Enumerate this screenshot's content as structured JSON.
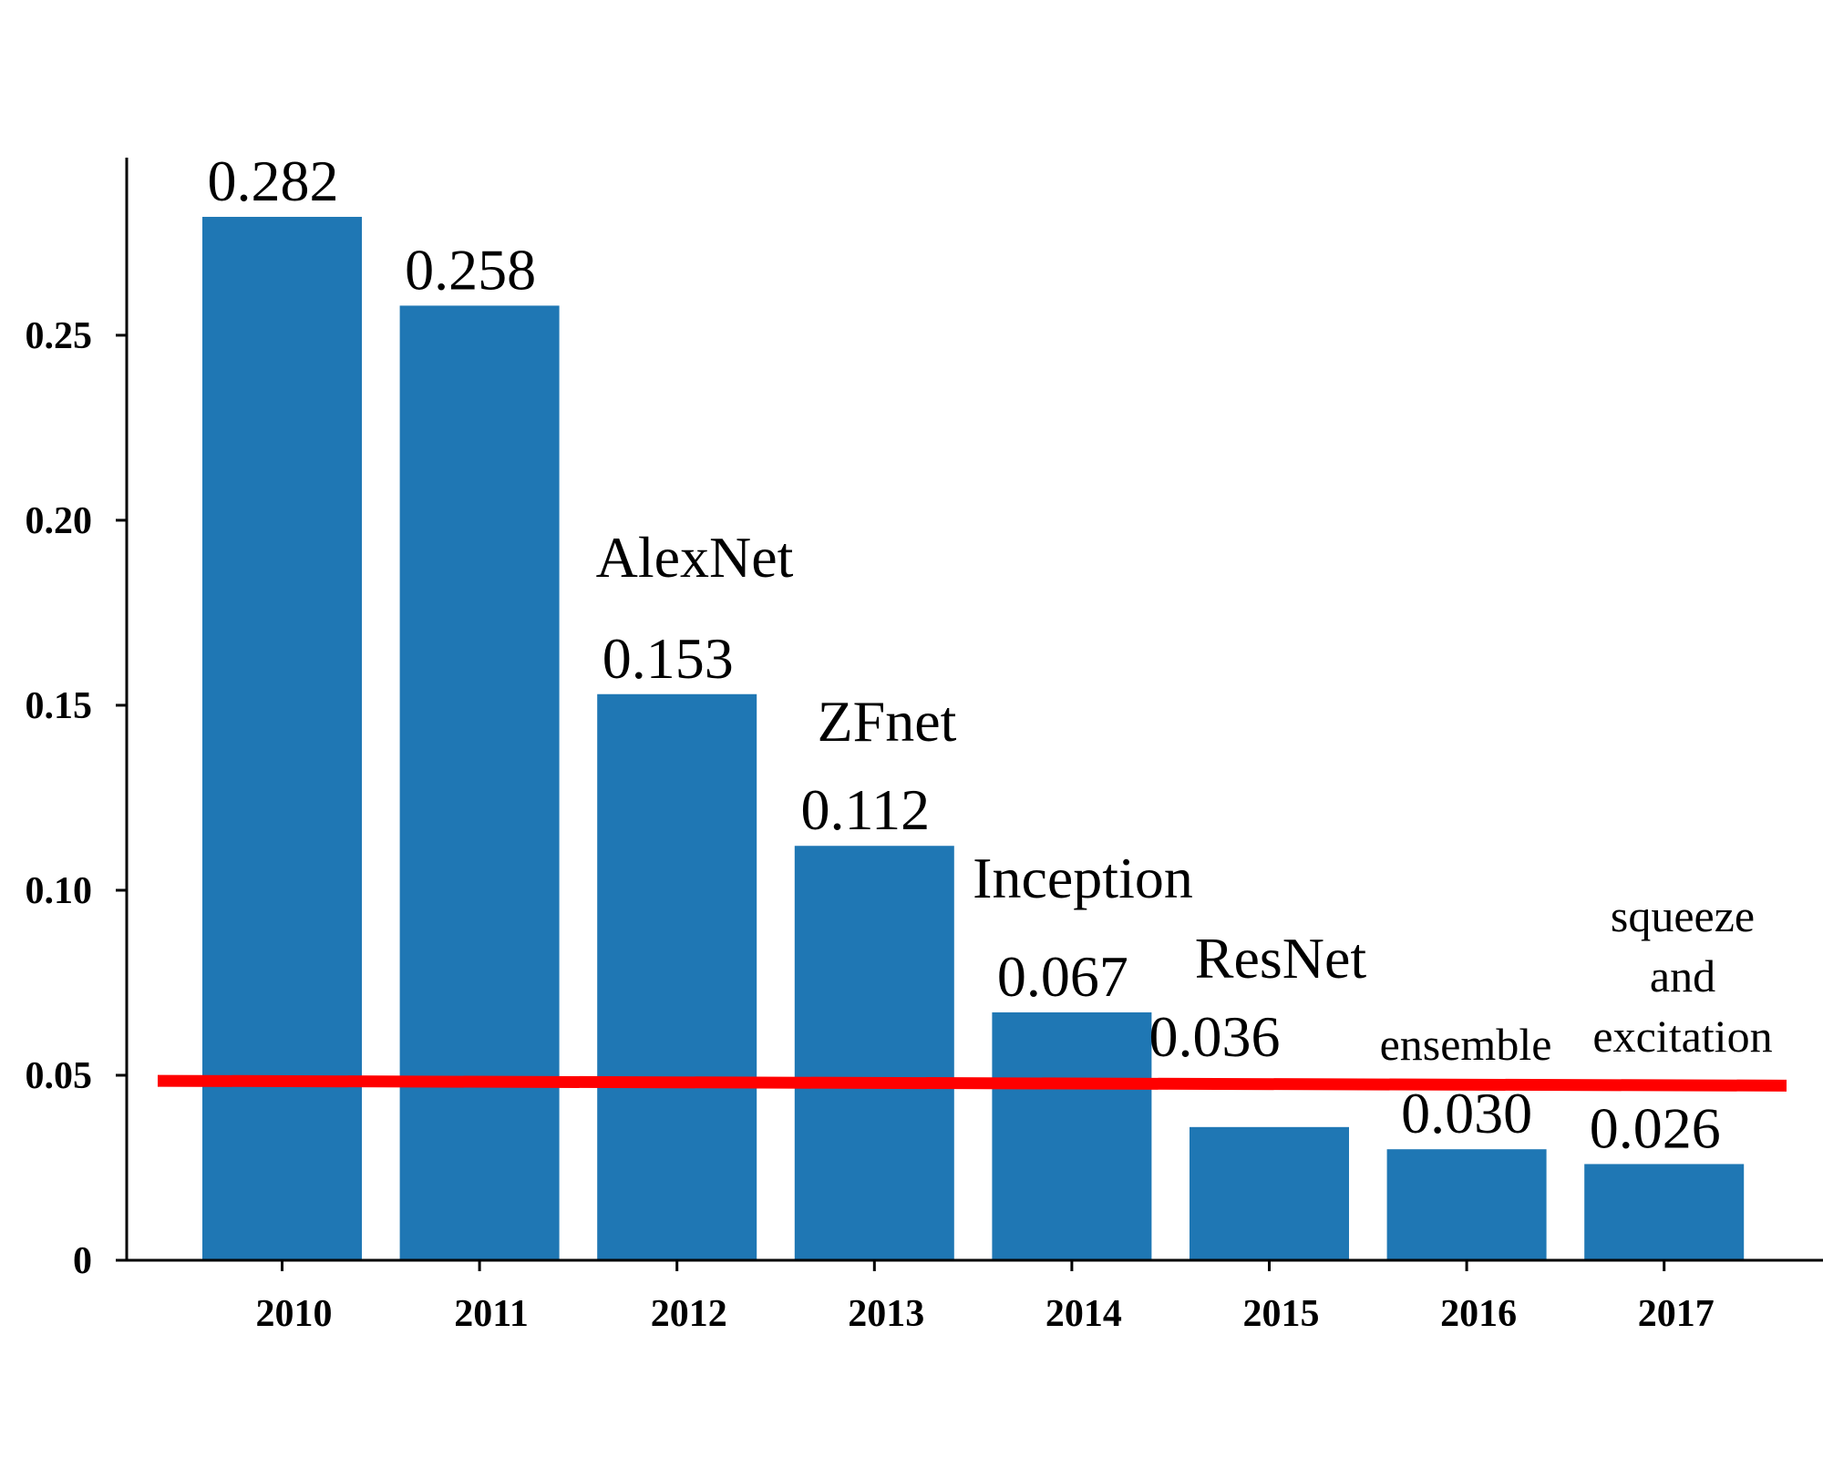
{
  "chart_data": {
    "type": "bar",
    "categories": [
      "2010",
      "2011",
      "2012",
      "2013",
      "2014",
      "2015",
      "2016",
      "2017"
    ],
    "values": [
      0.282,
      0.258,
      0.153,
      0.112,
      0.067,
      0.036,
      0.03,
      0.026
    ],
    "value_labels": [
      "0.282",
      "0.258",
      "0.153",
      "0.112",
      "0.067",
      "0.036",
      "0.030",
      "0.026"
    ],
    "model_labels": [
      [],
      [],
      [
        "AlexNet"
      ],
      [
        "ZFnet"
      ],
      [
        "Inception"
      ],
      [
        "ResNet"
      ],
      [
        "ensemble"
      ],
      [
        "squeeze",
        "and",
        "excitation"
      ]
    ],
    "y_ticks": [
      0,
      0.05,
      0.1,
      0.15,
      0.2,
      0.25
    ],
    "y_tick_labels": [
      "0",
      "0.05",
      "0.10",
      "0.15",
      "0.20",
      "0.25"
    ],
    "ylim": [
      0,
      0.298
    ],
    "reference_line": {
      "y_start": 0.0485,
      "y_end": 0.0472,
      "color": "#ff0000"
    },
    "bar_color": "#1f77b4",
    "grid": false,
    "title": "",
    "xlabel": "",
    "ylabel": ""
  }
}
